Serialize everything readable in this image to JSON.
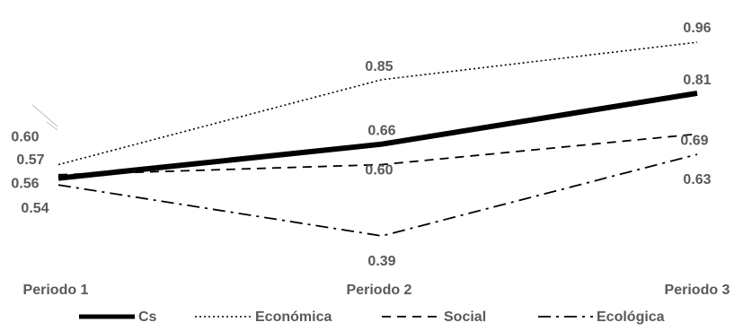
{
  "chart_data": {
    "type": "line",
    "categories": [
      "Periodo 1",
      "Periodo 2",
      "Periodo 3"
    ],
    "series": [
      {
        "name": "Cs",
        "values": [
          0.56,
          0.66,
          0.81
        ],
        "data_labels": [
          "0.56",
          "0.66",
          "0.81"
        ],
        "color": "#000000",
        "dash": "solid"
      },
      {
        "name": "Económica",
        "values": [
          0.6,
          0.85,
          0.96
        ],
        "data_labels": [
          "0.60",
          "0.85",
          "0.96"
        ],
        "color": "#000000",
        "dash": "dotted"
      },
      {
        "name": "Social",
        "values": [
          0.57,
          0.6,
          0.69
        ],
        "data_labels": [
          "0.57",
          "0.60",
          "0.69"
        ],
        "color": "#000000",
        "dash": "dashed"
      },
      {
        "name": "Ecológica",
        "values": [
          0.54,
          0.39,
          0.63
        ],
        "data_labels": [
          "0.54",
          "0.39",
          "0.63"
        ],
        "color": "#000000",
        "dash": "dashdot"
      }
    ],
    "title": "",
    "xlabel": "",
    "ylabel": "",
    "ylim": [
      0.2,
      1.05
    ],
    "grid": false,
    "legend_position": "bottom",
    "text_color": "#595959"
  }
}
